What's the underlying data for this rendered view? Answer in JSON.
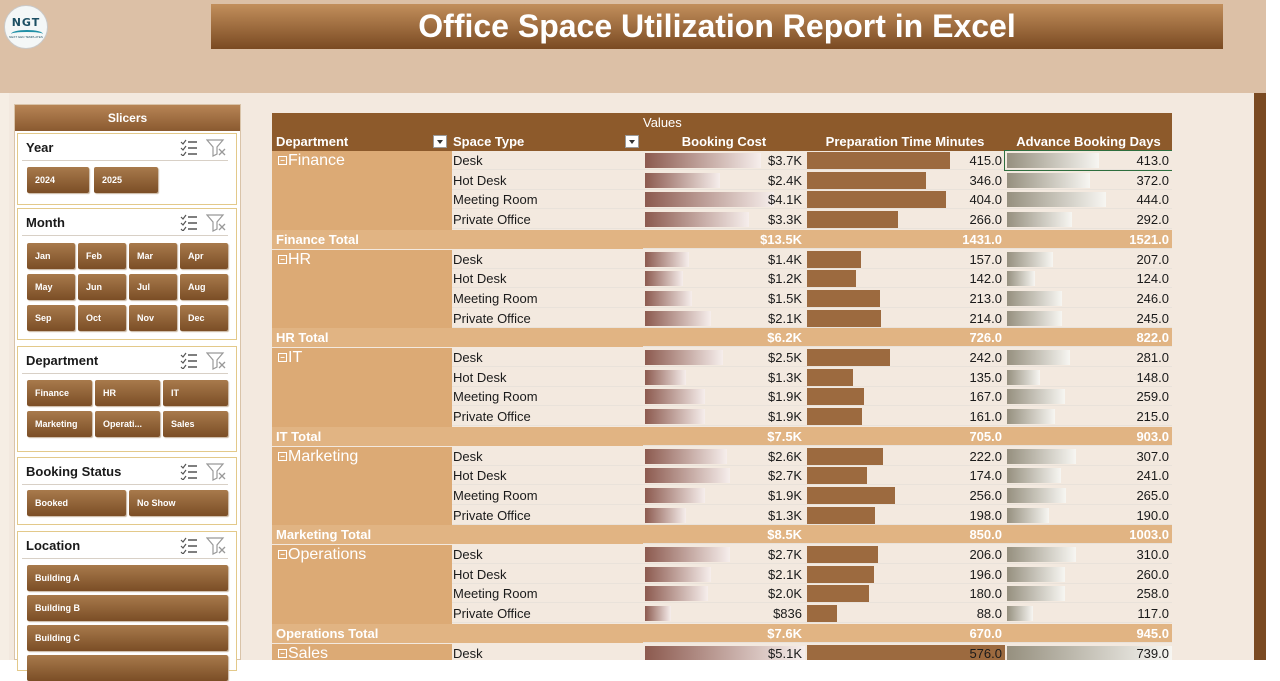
{
  "logo": {
    "text": "NGT",
    "subtext": "NEXT GEN TEMPLATES"
  },
  "title": "Office Space Utilization Report in Excel",
  "slicers": {
    "header": "Slicers",
    "year": {
      "title": "Year",
      "items": [
        "2024",
        "2025"
      ]
    },
    "month": {
      "title": "Month",
      "items": [
        "Jan",
        "Feb",
        "Mar",
        "Apr",
        "May",
        "Jun",
        "Jul",
        "Aug",
        "Sep",
        "Oct",
        "Nov",
        "Dec"
      ]
    },
    "department": {
      "title": "Department",
      "items": [
        "Finance",
        "HR",
        "IT",
        "Marketing",
        "Operati...",
        "Sales"
      ]
    },
    "booking_status": {
      "title": "Booking Status",
      "items": [
        "Booked",
        "No Show"
      ]
    },
    "location": {
      "title": "Location",
      "items": [
        "Building A",
        "Building B",
        "Building C"
      ]
    }
  },
  "pivot": {
    "values_label": "Values",
    "headers": {
      "department": "Department",
      "space_type": "Space Type",
      "booking_cost": "Booking Cost",
      "prep_time": "Preparation Time Minutes",
      "advance_days": "Advance Booking Days"
    },
    "groups": [
      {
        "department": "Finance",
        "rows": [
          {
            "space": "Desk",
            "cost": "$3.7K",
            "prep": "415.0",
            "adv": "413.0",
            "cost_v": 3.7,
            "prep_v": 415,
            "adv_v": 413
          },
          {
            "space": "Hot Desk",
            "cost": "$2.4K",
            "prep": "346.0",
            "adv": "372.0",
            "cost_v": 2.4,
            "prep_v": 346,
            "adv_v": 372
          },
          {
            "space": "Meeting Room",
            "cost": "$4.1K",
            "prep": "404.0",
            "adv": "444.0",
            "cost_v": 4.1,
            "prep_v": 404,
            "adv_v": 444
          },
          {
            "space": "Private Office",
            "cost": "$3.3K",
            "prep": "266.0",
            "adv": "292.0",
            "cost_v": 3.3,
            "prep_v": 266,
            "adv_v": 292
          }
        ],
        "total_label": "Finance Total",
        "total": {
          "cost": "$13.5K",
          "prep": "1431.0",
          "adv": "1521.0"
        }
      },
      {
        "department": "HR",
        "rows": [
          {
            "space": "Desk",
            "cost": "$1.4K",
            "prep": "157.0",
            "adv": "207.0",
            "cost_v": 1.4,
            "prep_v": 157,
            "adv_v": 207
          },
          {
            "space": "Hot Desk",
            "cost": "$1.2K",
            "prep": "142.0",
            "adv": "124.0",
            "cost_v": 1.2,
            "prep_v": 142,
            "adv_v": 124
          },
          {
            "space": "Meeting Room",
            "cost": "$1.5K",
            "prep": "213.0",
            "adv": "246.0",
            "cost_v": 1.5,
            "prep_v": 213,
            "adv_v": 246
          },
          {
            "space": "Private Office",
            "cost": "$2.1K",
            "prep": "214.0",
            "adv": "245.0",
            "cost_v": 2.1,
            "prep_v": 214,
            "adv_v": 245
          }
        ],
        "total_label": "HR Total",
        "total": {
          "cost": "$6.2K",
          "prep": "726.0",
          "adv": "822.0"
        }
      },
      {
        "department": "IT",
        "rows": [
          {
            "space": "Desk",
            "cost": "$2.5K",
            "prep": "242.0",
            "adv": "281.0",
            "cost_v": 2.5,
            "prep_v": 242,
            "adv_v": 281
          },
          {
            "space": "Hot Desk",
            "cost": "$1.3K",
            "prep": "135.0",
            "adv": "148.0",
            "cost_v": 1.3,
            "prep_v": 135,
            "adv_v": 148
          },
          {
            "space": "Meeting Room",
            "cost": "$1.9K",
            "prep": "167.0",
            "adv": "259.0",
            "cost_v": 1.9,
            "prep_v": 167,
            "adv_v": 259
          },
          {
            "space": "Private Office",
            "cost": "$1.9K",
            "prep": "161.0",
            "adv": "215.0",
            "cost_v": 1.9,
            "prep_v": 161,
            "adv_v": 215
          }
        ],
        "total_label": "IT Total",
        "total": {
          "cost": "$7.5K",
          "prep": "705.0",
          "adv": "903.0"
        }
      },
      {
        "department": "Marketing",
        "rows": [
          {
            "space": "Desk",
            "cost": "$2.6K",
            "prep": "222.0",
            "adv": "307.0",
            "cost_v": 2.6,
            "prep_v": 222,
            "adv_v": 307
          },
          {
            "space": "Hot Desk",
            "cost": "$2.7K",
            "prep": "174.0",
            "adv": "241.0",
            "cost_v": 2.7,
            "prep_v": 174,
            "adv_v": 241
          },
          {
            "space": "Meeting Room",
            "cost": "$1.9K",
            "prep": "256.0",
            "adv": "265.0",
            "cost_v": 1.9,
            "prep_v": 256,
            "adv_v": 265
          },
          {
            "space": "Private Office",
            "cost": "$1.3K",
            "prep": "198.0",
            "adv": "190.0",
            "cost_v": 1.3,
            "prep_v": 198,
            "adv_v": 190
          }
        ],
        "total_label": "Marketing Total",
        "total": {
          "cost": "$8.5K",
          "prep": "850.0",
          "adv": "1003.0"
        }
      },
      {
        "department": "Operations",
        "rows": [
          {
            "space": "Desk",
            "cost": "$2.7K",
            "prep": "206.0",
            "adv": "310.0",
            "cost_v": 2.7,
            "prep_v": 206,
            "adv_v": 310
          },
          {
            "space": "Hot Desk",
            "cost": "$2.1K",
            "prep": "196.0",
            "adv": "260.0",
            "cost_v": 2.1,
            "prep_v": 196,
            "adv_v": 260
          },
          {
            "space": "Meeting Room",
            "cost": "$2.0K",
            "prep": "180.0",
            "adv": "258.0",
            "cost_v": 2.0,
            "prep_v": 180,
            "adv_v": 258
          },
          {
            "space": "Private Office",
            "cost": "$836",
            "prep": "88.0",
            "adv": "117.0",
            "cost_v": 0.836,
            "prep_v": 88,
            "adv_v": 117
          }
        ],
        "total_label": "Operations Total",
        "total": {
          "cost": "$7.6K",
          "prep": "670.0",
          "adv": "945.0"
        }
      },
      {
        "department": "Sales",
        "rows": [
          {
            "space": "Desk",
            "cost": "$5.1K",
            "prep": "576.0",
            "adv": "739.0",
            "cost_v": 5.1,
            "prep_v": 576,
            "adv_v": 739
          }
        ]
      }
    ],
    "scale": {
      "cost_max": 5.1,
      "prep_max": 576,
      "adv_max": 739
    }
  },
  "colors": {
    "header": "#8d5a2b",
    "department_cell": "#dcaa75",
    "total_row": "#e1b483",
    "title_bg": "#7a4a22"
  }
}
